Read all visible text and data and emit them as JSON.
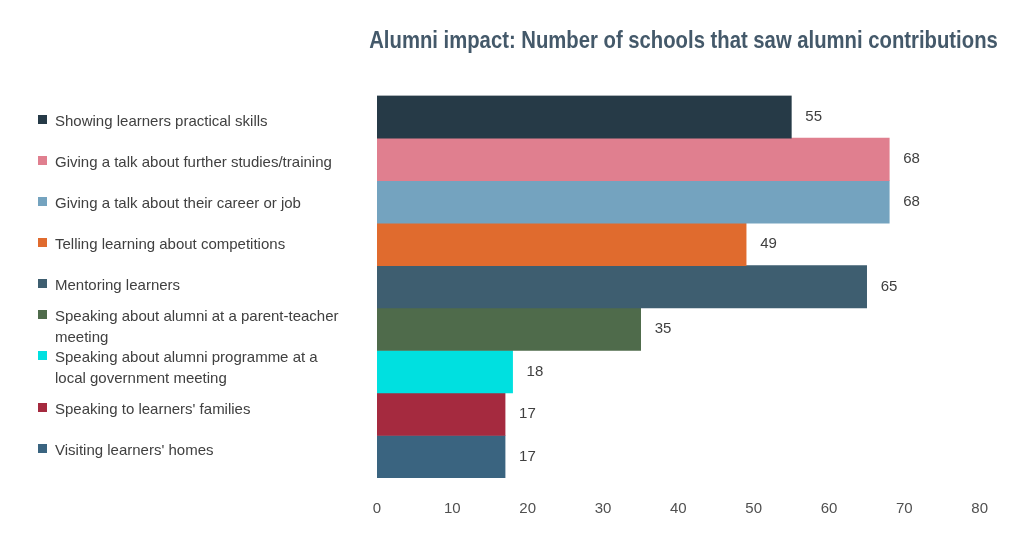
{
  "chart_data": {
    "type": "bar",
    "orientation": "horizontal",
    "stacked": true,
    "title": "Alumni impact: Number of schools that saw alumni contributions",
    "categories": [
      null,
      null,
      null,
      null,
      null,
      null,
      null,
      null,
      null
    ],
    "series": [
      {
        "name": "Showing learners practical skills",
        "color": "#263a47",
        "values": [
          55,
          null,
          null,
          null,
          null,
          null,
          null,
          null,
          null
        ]
      },
      {
        "name": "Giving a talk about further studies/training",
        "color": "#e07f8f",
        "values": [
          null,
          68,
          null,
          null,
          null,
          null,
          null,
          null,
          null
        ]
      },
      {
        "name": "Giving a talk about their career or job",
        "color": "#74a3bf",
        "values": [
          null,
          null,
          68,
          null,
          null,
          null,
          null,
          null,
          null
        ]
      },
      {
        "name": "Telling learning about competitions",
        "color": "#e06b2e",
        "values": [
          null,
          null,
          null,
          49,
          null,
          null,
          null,
          null,
          null
        ]
      },
      {
        "name": "Mentoring learners",
        "color": "#3e5e70",
        "values": [
          null,
          null,
          null,
          null,
          65,
          null,
          null,
          null,
          null
        ]
      },
      {
        "name": "Speaking about alumni at a parent-teacher meeting",
        "color": "#4f6b4b",
        "values": [
          null,
          null,
          null,
          null,
          null,
          35,
          null,
          null,
          null
        ]
      },
      {
        "name": "Speaking about alumni programme at a local government meeting",
        "color": "#00e0e0",
        "values": [
          null,
          null,
          null,
          null,
          null,
          null,
          18,
          null,
          null
        ]
      },
      {
        "name": "Speaking to learners' families",
        "color": "#a52a3f",
        "values": [
          null,
          null,
          null,
          null,
          null,
          null,
          null,
          17,
          null
        ]
      },
      {
        "name": "Visiting learners' homes",
        "color": "#3a6480",
        "values": [
          null,
          null,
          null,
          null,
          null,
          null,
          null,
          null,
          17
        ]
      }
    ],
    "xlim": [
      0,
      80
    ],
    "xticks": [
      0,
      10,
      20,
      30,
      40,
      50,
      60,
      70,
      80
    ],
    "data_labels": true,
    "legend": "left"
  }
}
